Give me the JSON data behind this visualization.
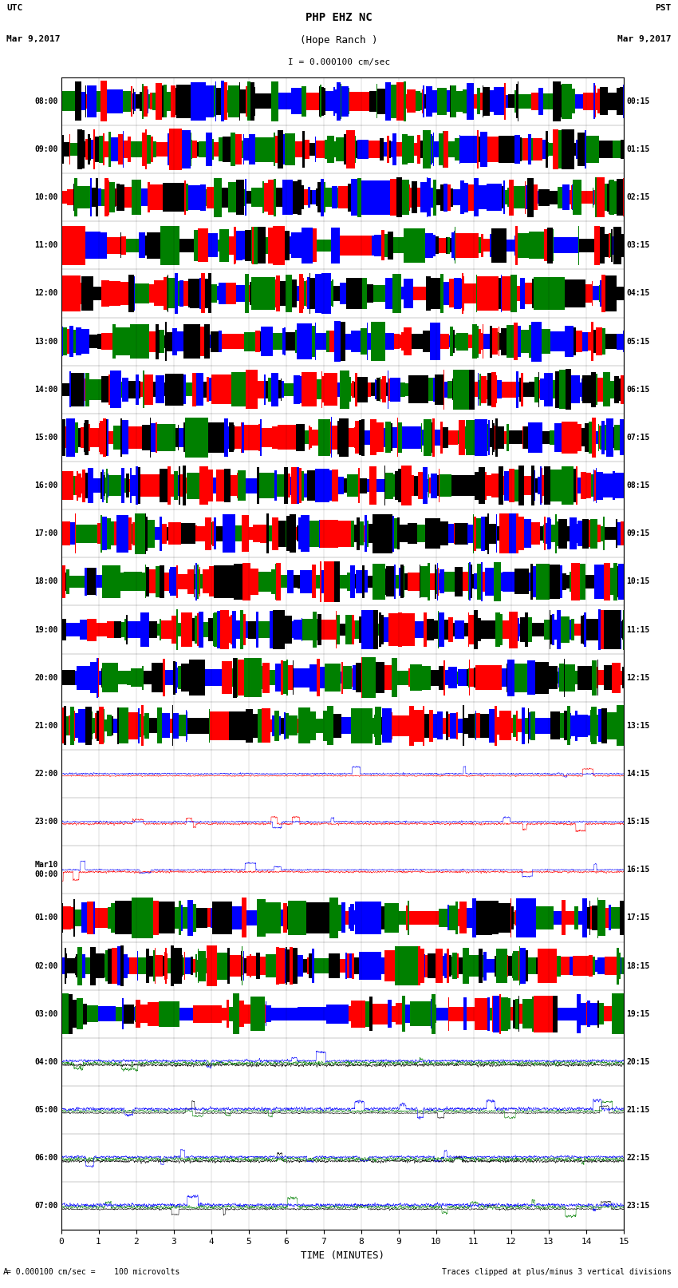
{
  "title_line1": "PHP EHZ NC",
  "title_line2": "(Hope Ranch )",
  "title_line3": "I = 0.000100 cm/sec",
  "label_utc": "UTC",
  "label_pst": "PST",
  "date_left": "Mar 9,2017",
  "date_right": "Mar 9,2017",
  "footer_left": "= 0.000100 cm/sec =    100 microvolts",
  "footer_right": "Traces clipped at plus/minus 3 vertical divisions",
  "xlabel": "TIME (MINUTES)",
  "xmin": 0,
  "xmax": 15,
  "xticks": [
    0,
    1,
    2,
    3,
    4,
    5,
    6,
    7,
    8,
    9,
    10,
    11,
    12,
    13,
    14,
    15
  ],
  "utc_labels": [
    "08:00",
    "09:00",
    "10:00",
    "11:00",
    "12:00",
    "13:00",
    "14:00",
    "15:00",
    "16:00",
    "17:00",
    "18:00",
    "19:00",
    "20:00",
    "21:00",
    "22:00",
    "23:00",
    "Mar10\n00:00",
    "01:00",
    "02:00",
    "03:00",
    "04:00",
    "05:00",
    "06:00",
    "07:00"
  ],
  "pst_labels": [
    "00:15",
    "01:15",
    "02:15",
    "03:15",
    "04:15",
    "05:15",
    "06:15",
    "07:15",
    "08:15",
    "09:15",
    "10:15",
    "11:15",
    "12:15",
    "13:15",
    "14:15",
    "15:15",
    "16:15",
    "17:15",
    "18:15",
    "19:15",
    "20:15",
    "21:15",
    "22:15",
    "23:15"
  ],
  "n_rows": 24,
  "noise_rows": [
    0,
    1,
    2,
    3,
    4,
    5,
    6,
    7,
    8,
    9,
    10,
    11,
    12,
    13,
    17,
    18,
    19
  ],
  "quiet_rows": [
    14,
    15,
    16,
    20,
    21,
    22,
    23
  ],
  "background_color": "#ffffff",
  "noise_colors": [
    "#ff0000",
    "#0000ff",
    "#008000",
    "#000000"
  ],
  "fig_width": 8.5,
  "fig_height": 16.13,
  "dpi": 100
}
